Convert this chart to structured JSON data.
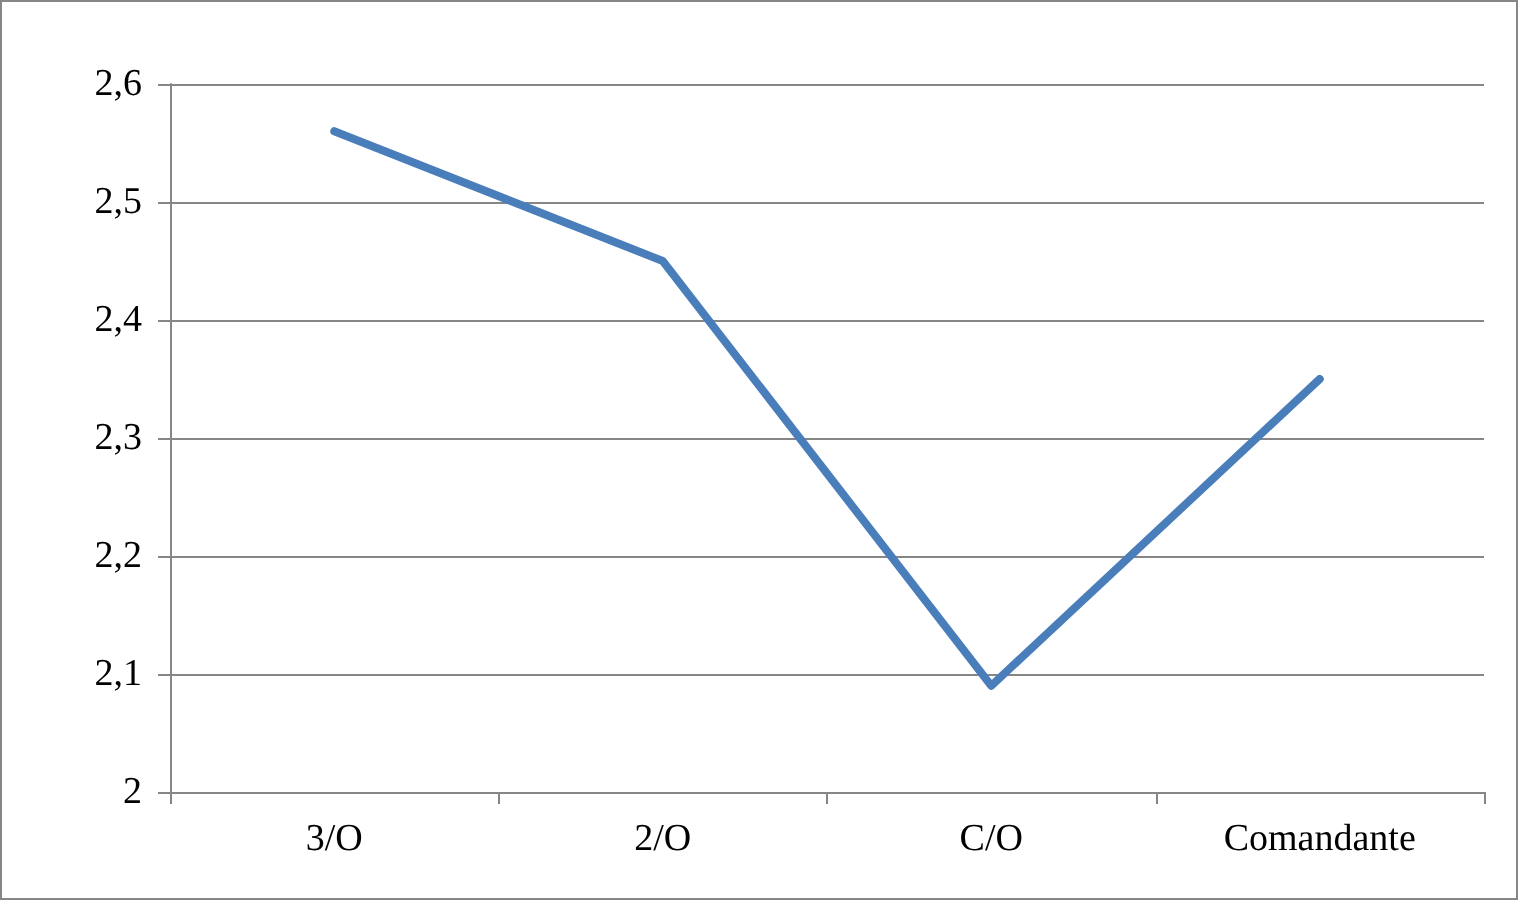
{
  "chart_data": {
    "type": "line",
    "categories": [
      "3/O",
      "2/O",
      "C/O",
      "Comandante"
    ],
    "series": [
      {
        "color": "#4a7ebb",
        "values": [
          2.56,
          2.45,
          2.09,
          2.35
        ]
      }
    ],
    "ylim": [
      2,
      2.6
    ],
    "yticks": [
      2,
      {
        "value": 2.1,
        "label": "2,1"
      },
      {
        "value": 2.2,
        "label": "2,2"
      },
      {
        "value": 2.3,
        "label": "2,3"
      },
      {
        "value": 2.4,
        "label": "2,4"
      },
      {
        "value": 2.5,
        "label": "2,5"
      },
      {
        "value": 2.6,
        "label": "2,6"
      }
    ],
    "grid": "y",
    "marker": "none",
    "line_style": "solid"
  }
}
